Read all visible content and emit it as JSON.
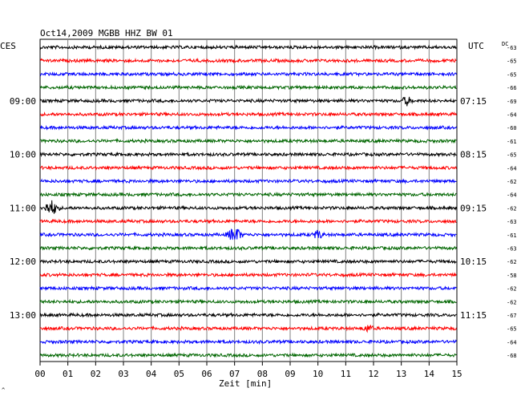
{
  "chart_data": {
    "type": "line",
    "title": "Oct14,2009   MGBB HHZ BW 01",
    "left_header": "CES",
    "right_header": "UTC",
    "offset_header": "DC",
    "xlabel": "Zeit [min]",
    "x_ticks": [
      "00",
      "01",
      "02",
      "03",
      "04",
      "05",
      "06",
      "07",
      "08",
      "09",
      "10",
      "11",
      "12",
      "13",
      "14",
      "15"
    ],
    "xlim": [
      0,
      15
    ],
    "left_time_labels": [
      "09:00",
      "10:00",
      "11:00",
      "12:00",
      "13:00"
    ],
    "right_time_labels": [
      "07:15",
      "08:15",
      "09:15",
      "10:15",
      "11:15"
    ],
    "line_colors": [
      "#000000",
      "#ff0000",
      "#0000ff",
      "#006600"
    ],
    "dc_offsets": [
      "-63",
      "-65",
      "-65",
      "-66",
      "-69",
      "-64",
      "-60",
      "-61",
      "-65",
      "-64",
      "-62",
      "-64",
      "-62",
      "-63",
      "-61",
      "-63",
      "-62",
      "-58",
      "-62",
      "-62",
      "-67",
      "-65",
      "-64",
      "-68"
    ],
    "events": [
      {
        "trace": 4,
        "minute": 13.2,
        "amplitude": "medium"
      },
      {
        "trace": 12,
        "minute": 0.4,
        "amplitude": "large"
      },
      {
        "trace": 14,
        "minute": 7.0,
        "amplitude": "large"
      },
      {
        "trace": 14,
        "minute": 10.0,
        "amplitude": "medium"
      },
      {
        "trace": 21,
        "minute": 11.8,
        "amplitude": "small"
      }
    ],
    "grid": true
  },
  "footer_mark": "^"
}
